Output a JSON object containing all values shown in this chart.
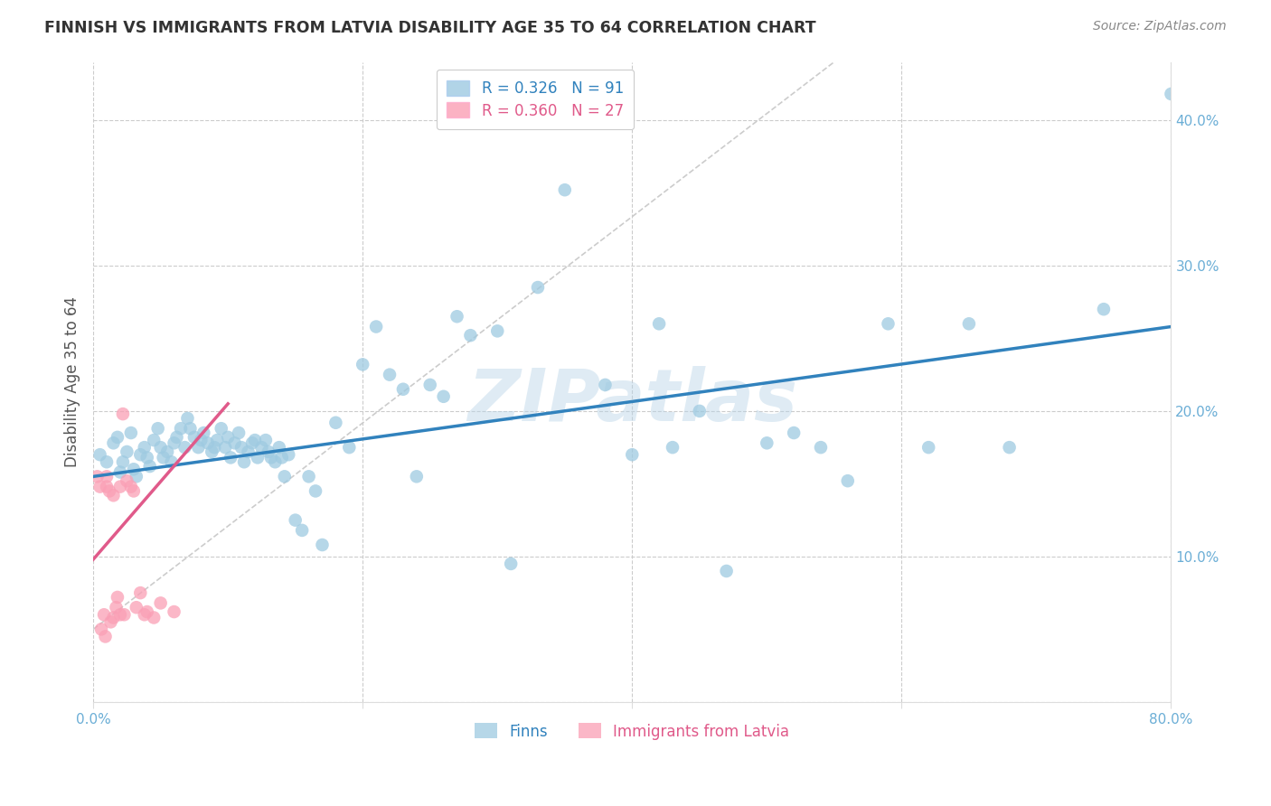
{
  "title": "FINNISH VS IMMIGRANTS FROM LATVIA DISABILITY AGE 35 TO 64 CORRELATION CHART",
  "source": "Source: ZipAtlas.com",
  "ylabel": "Disability Age 35 to 64",
  "xlim": [
    0.0,
    0.8
  ],
  "ylim": [
    0.0,
    0.44
  ],
  "xticks": [
    0.0,
    0.8
  ],
  "xticklabels": [
    "0.0%",
    "80.0%"
  ],
  "yticks_right": [
    0.1,
    0.2,
    0.3,
    0.4
  ],
  "yticklabels_right": [
    "10.0%",
    "20.0%",
    "30.0%",
    "40.0%"
  ],
  "yticks_grid": [
    0.0,
    0.1,
    0.2,
    0.3,
    0.4
  ],
  "legend_color1": "#9ecae1",
  "legend_color2": "#fa9fb5",
  "watermark": "ZIPatlas",
  "blue_line_color": "#3182bd",
  "pink_line_color": "#e05a8a",
  "ref_line_color": "#cccccc",
  "scatter_blue_color": "#9ecae1",
  "scatter_pink_color": "#fa9fb5",
  "background_color": "#ffffff",
  "grid_color": "#cccccc",
  "title_color": "#333333",
  "tick_color": "#6baed6",
  "ylabel_color": "#555555",
  "blue_scatter_x": [
    0.005,
    0.01,
    0.015,
    0.018,
    0.02,
    0.022,
    0.025,
    0.028,
    0.03,
    0.032,
    0.035,
    0.038,
    0.04,
    0.042,
    0.045,
    0.048,
    0.05,
    0.052,
    0.055,
    0.058,
    0.06,
    0.062,
    0.065,
    0.068,
    0.07,
    0.072,
    0.075,
    0.078,
    0.08,
    0.082,
    0.085,
    0.088,
    0.09,
    0.092,
    0.095,
    0.098,
    0.1,
    0.102,
    0.105,
    0.108,
    0.11,
    0.112,
    0.115,
    0.118,
    0.12,
    0.122,
    0.125,
    0.128,
    0.13,
    0.132,
    0.135,
    0.138,
    0.14,
    0.142,
    0.145,
    0.15,
    0.155,
    0.16,
    0.165,
    0.17,
    0.18,
    0.19,
    0.2,
    0.21,
    0.22,
    0.23,
    0.24,
    0.25,
    0.26,
    0.27,
    0.28,
    0.3,
    0.31,
    0.33,
    0.35,
    0.38,
    0.4,
    0.42,
    0.43,
    0.45,
    0.47,
    0.5,
    0.52,
    0.54,
    0.56,
    0.59,
    0.62,
    0.65,
    0.68,
    0.75,
    0.8
  ],
  "blue_scatter_y": [
    0.17,
    0.165,
    0.178,
    0.182,
    0.158,
    0.165,
    0.172,
    0.185,
    0.16,
    0.155,
    0.17,
    0.175,
    0.168,
    0.162,
    0.18,
    0.188,
    0.175,
    0.168,
    0.172,
    0.165,
    0.178,
    0.182,
    0.188,
    0.175,
    0.195,
    0.188,
    0.182,
    0.175,
    0.18,
    0.185,
    0.178,
    0.172,
    0.175,
    0.18,
    0.188,
    0.175,
    0.182,
    0.168,
    0.178,
    0.185,
    0.175,
    0.165,
    0.172,
    0.178,
    0.18,
    0.168,
    0.175,
    0.18,
    0.172,
    0.168,
    0.165,
    0.175,
    0.168,
    0.155,
    0.17,
    0.125,
    0.118,
    0.155,
    0.145,
    0.108,
    0.192,
    0.175,
    0.232,
    0.258,
    0.225,
    0.215,
    0.155,
    0.218,
    0.21,
    0.265,
    0.252,
    0.255,
    0.095,
    0.285,
    0.352,
    0.218,
    0.17,
    0.26,
    0.175,
    0.2,
    0.09,
    0.178,
    0.185,
    0.175,
    0.152,
    0.26,
    0.175,
    0.26,
    0.175,
    0.27,
    0.418
  ],
  "pink_scatter_x": [
    0.003,
    0.005,
    0.006,
    0.008,
    0.009,
    0.01,
    0.01,
    0.012,
    0.013,
    0.015,
    0.015,
    0.017,
    0.018,
    0.02,
    0.02,
    0.022,
    0.023,
    0.025,
    0.028,
    0.03,
    0.032,
    0.035,
    0.038,
    0.04,
    0.045,
    0.05,
    0.06
  ],
  "pink_scatter_y": [
    0.155,
    0.148,
    0.05,
    0.06,
    0.045,
    0.155,
    0.148,
    0.145,
    0.055,
    0.142,
    0.058,
    0.065,
    0.072,
    0.06,
    0.148,
    0.198,
    0.06,
    0.152,
    0.148,
    0.145,
    0.065,
    0.075,
    0.06,
    0.062,
    0.058,
    0.068,
    0.062
  ],
  "blue_line_x0": 0.0,
  "blue_line_y0": 0.155,
  "blue_line_x1": 0.8,
  "blue_line_y1": 0.258,
  "pink_line_x0": 0.0,
  "pink_line_y0": 0.098,
  "pink_line_x1": 0.1,
  "pink_line_y1": 0.205,
  "ref_line_x0": 0.0,
  "ref_line_y0": 0.05,
  "ref_line_x1": 0.55,
  "ref_line_y1": 0.44
}
